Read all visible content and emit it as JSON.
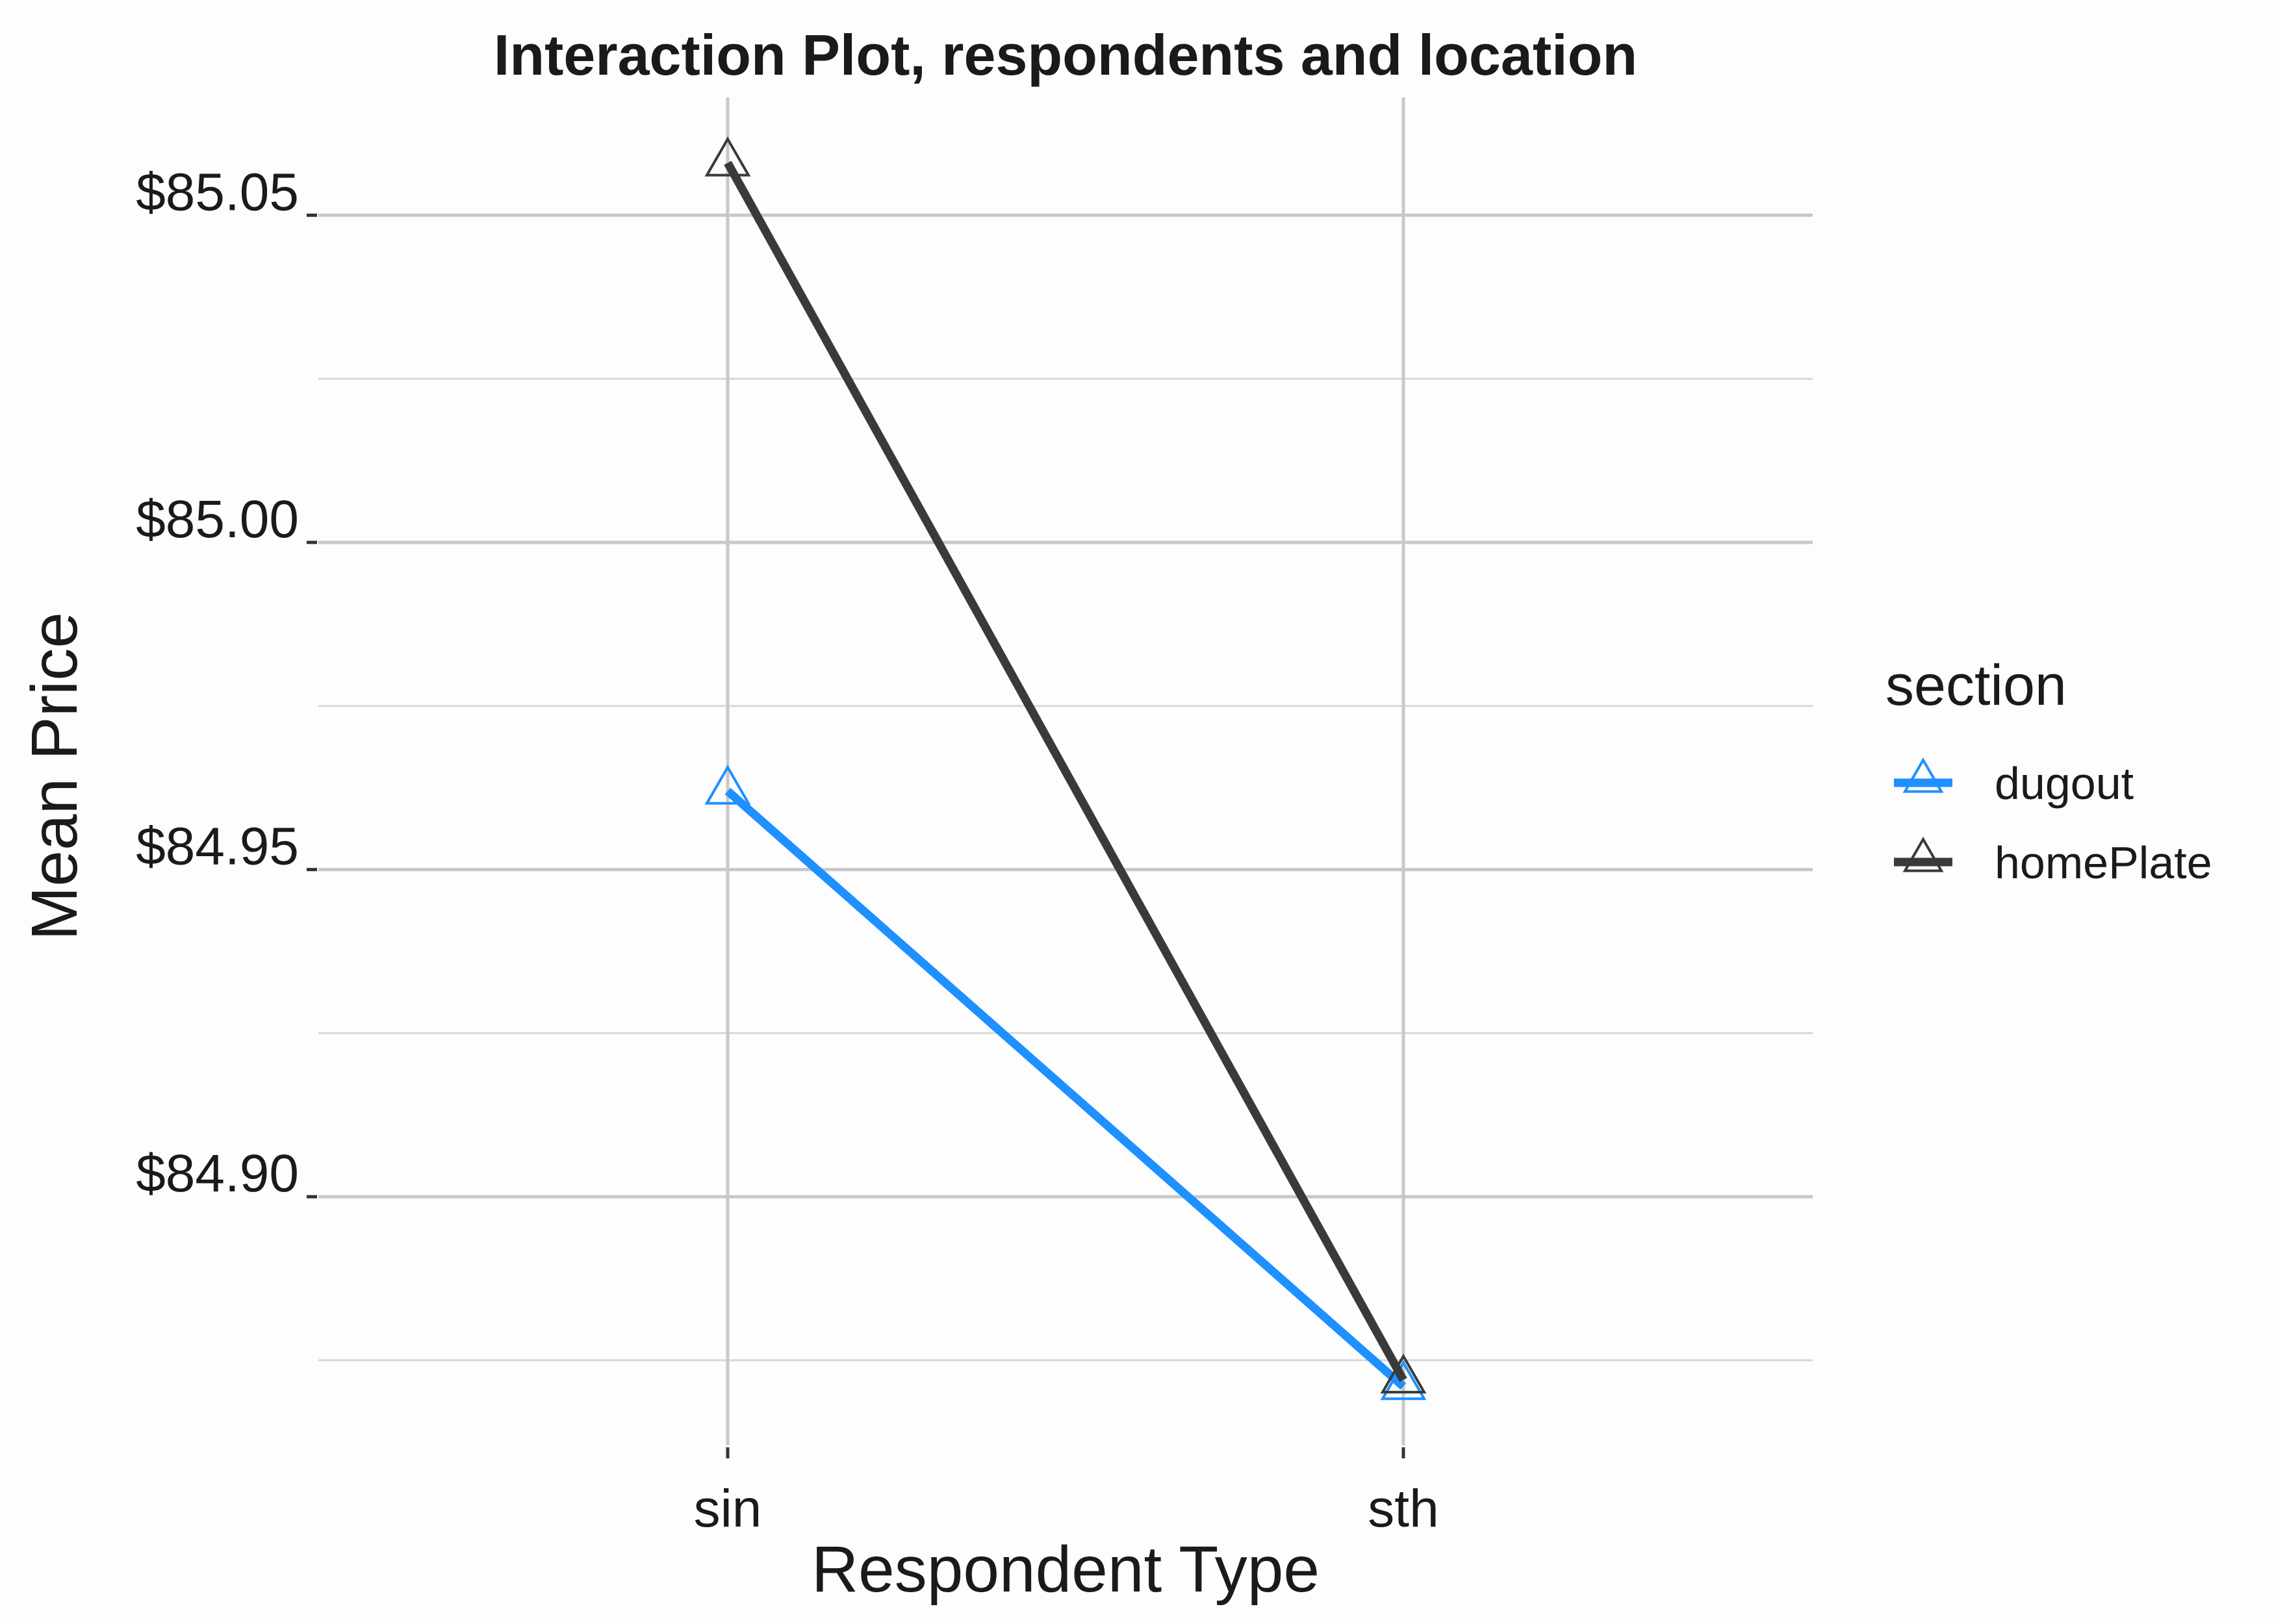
{
  "chart_data": {
    "type": "line",
    "title": "Interaction Plot, respondents and location",
    "xlabel": "Respondent Type",
    "ylabel": "Mean Price",
    "categories": [
      "sin",
      "sth"
    ],
    "ylim": [
      84.862,
      85.068
    ],
    "yticks": [
      {
        "value": 84.9,
        "label": "$84.90"
      },
      {
        "value": 84.95,
        "label": "$84.95"
      },
      {
        "value": 85.0,
        "label": "$85.00"
      },
      {
        "value": 85.05,
        "label": "$85.05"
      }
    ],
    "yminor": [
      84.875,
      84.925,
      84.975,
      85.025
    ],
    "grid": true,
    "legend": {
      "title": "section",
      "position": "right"
    },
    "marker": "open-triangle",
    "series": [
      {
        "name": "dugout",
        "color": "#1e90ff",
        "values": [
          84.962,
          84.871
        ]
      },
      {
        "name": "homePlate",
        "color": "#3a3a3a",
        "values": [
          85.058,
          84.872
        ]
      }
    ]
  }
}
